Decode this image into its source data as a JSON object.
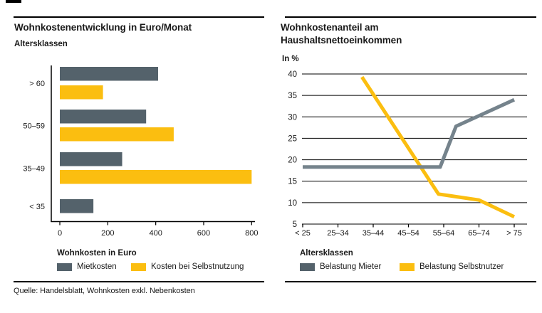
{
  "page": {
    "source_note": "Quelle: Handelsblatt, Wohnkosten exkl. Nebenkosten"
  },
  "colors": {
    "gray": "#54626B",
    "yellow": "#FBBE10",
    "line_gray": "#75838C",
    "line_yellow": "#FBBE10",
    "text": "#1A1A1A",
    "rule": "#000000"
  },
  "chart_data": [
    {
      "id": "wohnkosten-bar-chart",
      "type": "bar",
      "orientation": "horizontal",
      "title": "Wohnkostenentwicklung in Euro/Monat",
      "ylabel": "Altersklassen",
      "xlabel": "Wohnkosten in Euro",
      "categories": [
        "> 60",
        "50–59",
        "35–49",
        "< 35"
      ],
      "xticks": [
        0,
        200,
        400,
        600,
        800
      ],
      "xlim": [
        0,
        800
      ],
      "legend_position": "bottom",
      "grid": "off",
      "series": [
        {
          "name": "Mietkosten",
          "color": "gray",
          "values": [
            410,
            360,
            260,
            140
          ]
        },
        {
          "name": "Kosten bei Selbstnutzung",
          "color": "yellow",
          "values": [
            180,
            475,
            800,
            null
          ]
        }
      ]
    },
    {
      "id": "wohnkostenanteil-line-chart",
      "type": "line",
      "title": "Wohnkostenanteil am Haushaltsnettoeinkommen",
      "title_lines": [
        "Wohnkostenanteil am",
        "Haushaltsnettoeinkommen"
      ],
      "ylabel": "In %",
      "xlabel": "Altersklassen",
      "categories": [
        "< 25",
        "25–34",
        "35–44",
        "45–54",
        "55–64",
        "65–74",
        "> 75"
      ],
      "yticks": [
        40,
        35,
        30,
        25,
        20,
        15,
        10,
        5
      ],
      "ylim": [
        5,
        40
      ],
      "grid": "horizontal",
      "legend_position": "bottom",
      "series": [
        {
          "name": "Belastung Mieter",
          "swatch_color": "gray",
          "line_color": "line_gray",
          "points_x_category_index": [
            [
              0,
              18.3
            ],
            [
              3.9,
              18.3
            ],
            [
              4.35,
              27.8
            ],
            [
              6,
              34
            ]
          ],
          "values_at_categories": [
            18.3,
            18.3,
            18.3,
            18.3,
            18.3,
            30.3,
            34
          ]
        },
        {
          "name": "Belastung Selbstnutzer",
          "swatch_color": "yellow",
          "line_color": "line_yellow",
          "points_x_category_index": [
            [
              1.68,
              39.3
            ],
            [
              3.85,
              12
            ],
            [
              5,
              10.6
            ],
            [
              6,
              6.7
            ]
          ],
          "values_at_categories": [
            null,
            null,
            35.6,
            27.5,
            13.5,
            10.6,
            6.7
          ]
        }
      ]
    }
  ]
}
